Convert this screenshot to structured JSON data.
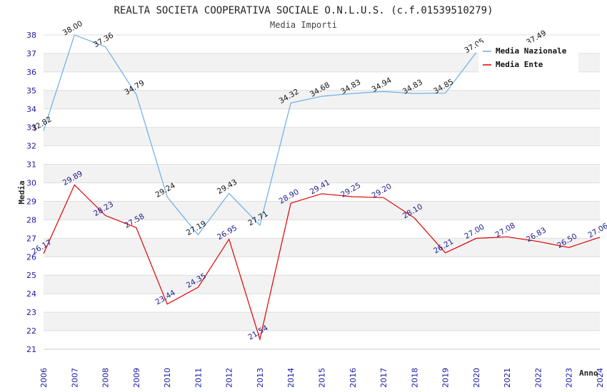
{
  "chart_data": {
    "type": "line",
    "title": "REALTA SOCIETA COOPERATIVA SOCIALE O.N.L.U.S. (c.f.01539510279)",
    "subtitle": "Media Importi",
    "xlabel": "Anno",
    "ylabel": "Media",
    "ylim": [
      21,
      38
    ],
    "yticks": [
      "21",
      "22",
      "23",
      "24",
      "25",
      "26",
      "27",
      "28",
      "29",
      "30",
      "31",
      "32",
      "33",
      "34",
      "35",
      "36",
      "37",
      "38"
    ],
    "categories": [
      "2006",
      "2007",
      "2008",
      "2009",
      "2010",
      "2011",
      "2012",
      "2013",
      "2014",
      "2015",
      "2016",
      "2017",
      "2018",
      "2019",
      "2020",
      "2021",
      "2022",
      "2023",
      "2024"
    ],
    "series": [
      {
        "name": "Media Nazionale",
        "color": "#6aaee8",
        "label_color": "#111111",
        "values": [
          32.82,
          38.0,
          37.36,
          34.79,
          29.24,
          27.19,
          29.43,
          27.71,
          34.32,
          34.68,
          34.83,
          34.94,
          34.83,
          34.85,
          37.05,
          null,
          37.49,
          null,
          null
        ],
        "labels": [
          "32.82",
          "38.00",
          "37.36",
          "34.79",
          "29.24",
          "27.19",
          "29.43",
          "27.71",
          "34.32",
          "34.68",
          "34.83",
          "34.94",
          "34.83",
          "34.85",
          "37.05",
          "",
          "37.49",
          "",
          ""
        ]
      },
      {
        "name": "Media Ente",
        "color": "#dd0000",
        "label_color": "#1a1a8c",
        "values": [
          26.17,
          29.89,
          28.23,
          27.58,
          23.44,
          24.35,
          26.95,
          21.54,
          28.9,
          29.41,
          29.25,
          29.2,
          28.1,
          26.21,
          27.0,
          27.08,
          26.83,
          26.5,
          27.06
        ],
        "labels": [
          "26.17",
          "29.89",
          "28.23",
          "27.58",
          "23.44",
          "24.35",
          "26.95",
          "21.54",
          "28.90",
          "29.41",
          "29.25",
          "29.20",
          "28.10",
          "26.21",
          "27.00",
          "27.08",
          "26.83",
          "26.50",
          "27.06"
        ]
      }
    ],
    "legend_position": "top-right"
  }
}
